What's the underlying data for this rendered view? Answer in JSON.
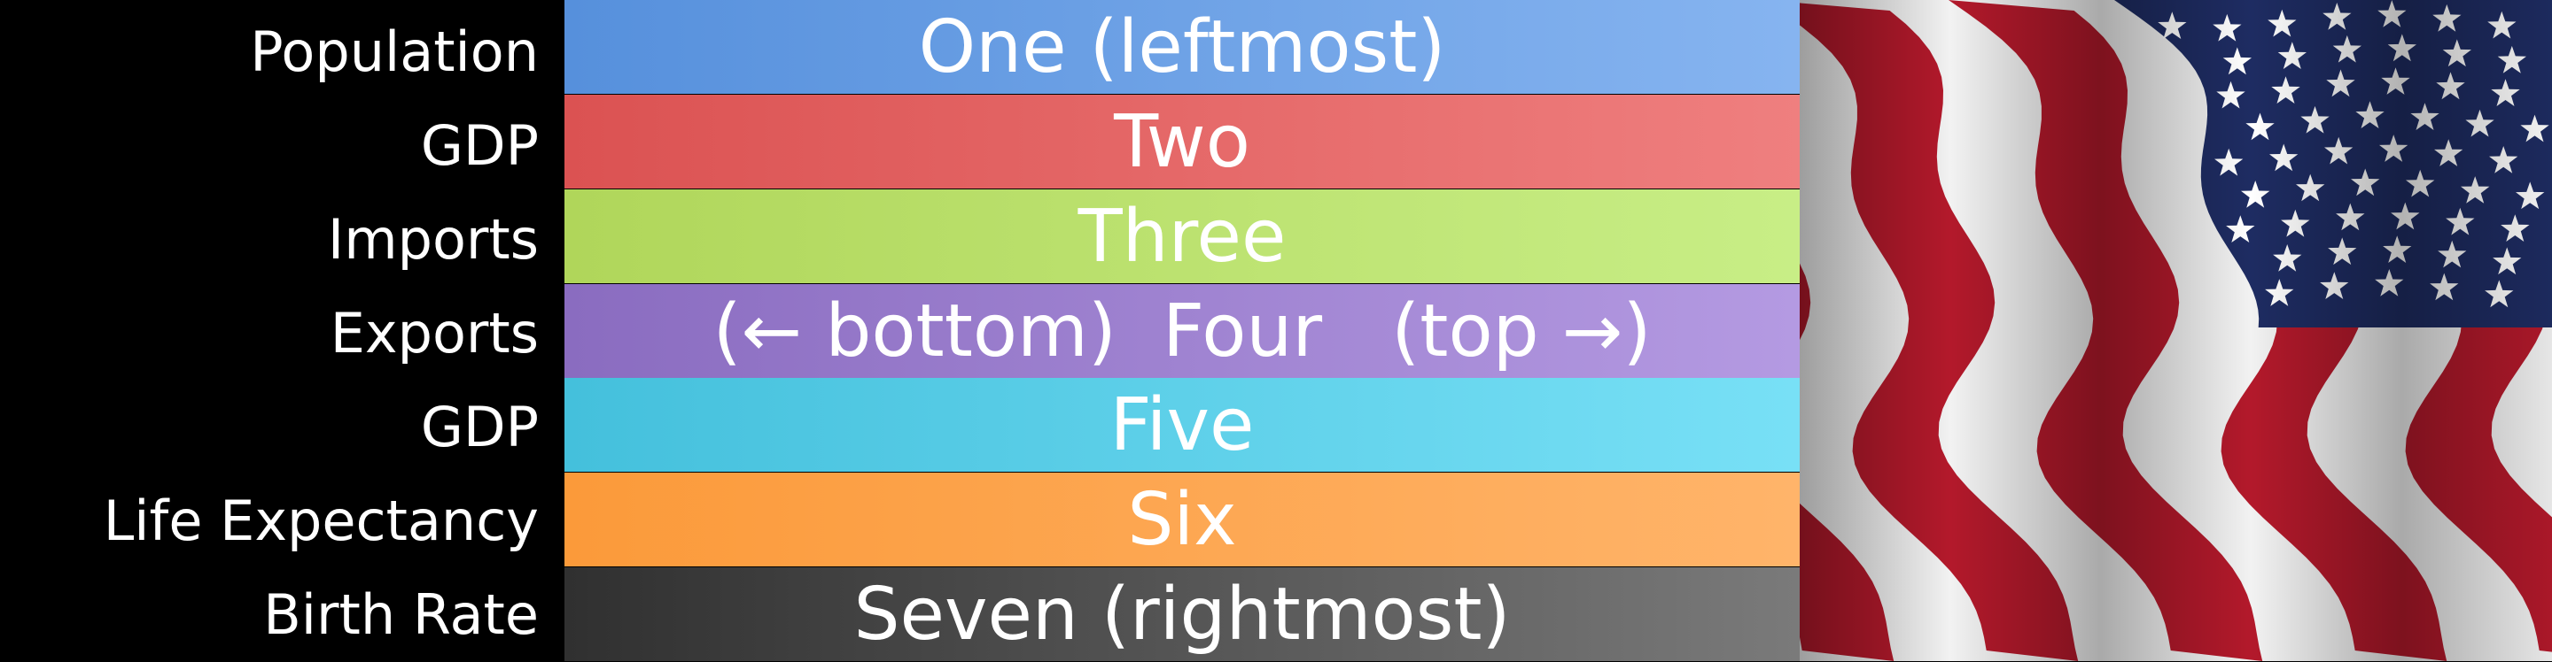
{
  "rows": [
    {
      "label": "Population",
      "text": "One (leftmost)",
      "color_start": "#5690dc",
      "color_end": "#86b4f0"
    },
    {
      "label": "GDP",
      "text": "Two",
      "color_start": "#db5252",
      "color_end": "#ef7f7f"
    },
    {
      "label": "Imports",
      "text": "Three",
      "color_start": "#b0d65a",
      "color_end": "#c8ee86"
    },
    {
      "label": "Exports",
      "text": "(← bottom)  Four   (top →)",
      "color_start": "#8a6cc0",
      "color_end": "#b49ae2"
    },
    {
      "label": "GDP",
      "text": "Five",
      "color_start": "#44c0dc",
      "color_end": "#78e0f6"
    },
    {
      "label": "Life Expectancy",
      "text": "Six",
      "color_start": "#fb9a3a",
      "color_end": "#ffb46a"
    },
    {
      "label": "Birth Rate",
      "text": "Seven (rightmost)",
      "color_start": "#303030",
      "color_end": "#7a7a7a"
    }
  ],
  "flag": {
    "icon": "us-flag-icon",
    "stripe_red": "#b3192b",
    "stripe_white": "#f2f2f2",
    "canton": "#1e2c62"
  }
}
